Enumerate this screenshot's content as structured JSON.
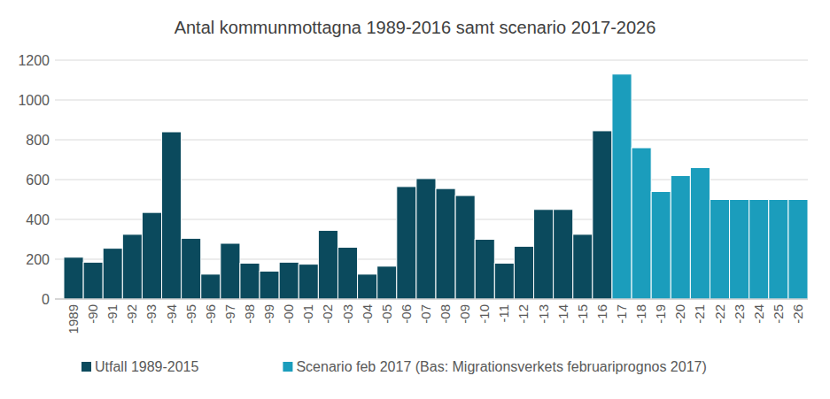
{
  "chart_data": {
    "type": "bar",
    "title": "Antal kommunmottagna  1989-2016 samt scenario 2017-2026",
    "categories": [
      "1989",
      "-90",
      "-91",
      "-92",
      "-93",
      "-94",
      "-95",
      "-96",
      "-97",
      "-98",
      "-99",
      "-00",
      "-01",
      "-02",
      "-03",
      "-04",
      "-05",
      "-06",
      "-07",
      "-08",
      "-09",
      "-10",
      "-11",
      "-12",
      "-13",
      "-14",
      "-15",
      "-16",
      "-17",
      "-18",
      "-19",
      "-20",
      "-21",
      "-22",
      "-23",
      "-24",
      "-25",
      "-26"
    ],
    "series": [
      {
        "name": "Utfall 1989-2015",
        "color": "#0b4a5d",
        "values": [
          210,
          185,
          255,
          325,
          435,
          840,
          305,
          125,
          280,
          180,
          140,
          185,
          175,
          345,
          260,
          125,
          165,
          565,
          605,
          555,
          520,
          300,
          180,
          265,
          450,
          450,
          325,
          845,
          null,
          null,
          null,
          null,
          null,
          null,
          null,
          null,
          null,
          null
        ]
      },
      {
        "name": "Scenario feb 2017 (Bas: Migrationsverkets februariprognos 2017)",
        "color": "#1b9dbc",
        "values": [
          null,
          null,
          null,
          null,
          null,
          null,
          null,
          null,
          null,
          null,
          null,
          null,
          null,
          null,
          null,
          null,
          null,
          null,
          null,
          null,
          null,
          null,
          null,
          null,
          null,
          null,
          null,
          null,
          1130,
          760,
          540,
          620,
          660,
          500,
          500,
          500,
          500,
          500
        ]
      }
    ],
    "ylim": [
      0,
      1200
    ],
    "yticks": [
      0,
      200,
      400,
      600,
      800,
      1000,
      1200
    ],
    "grid": true,
    "legend": "bottom"
  }
}
